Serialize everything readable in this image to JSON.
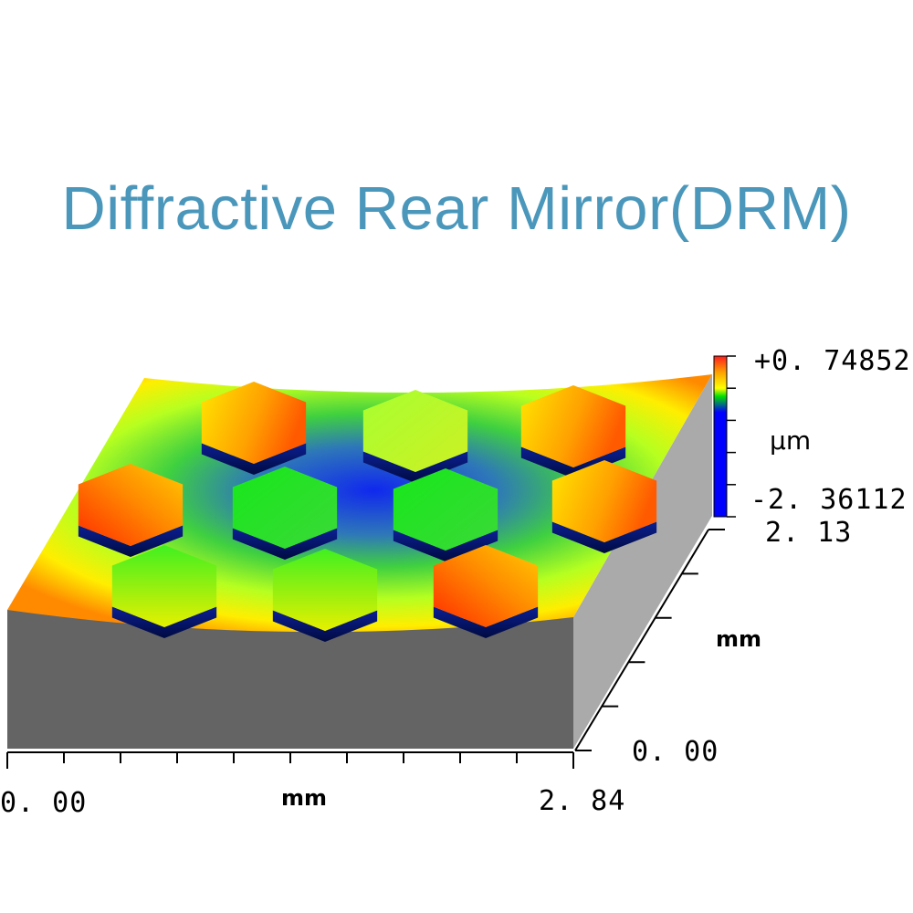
{
  "title": "Diffractive Rear Mirror(DRM)",
  "colorbar": {
    "max_label": "+0. 74852",
    "min_label": "-2. 36112",
    "unit": "μm",
    "colors": [
      "#ff1e1e",
      "#ffa000",
      "#ffff00",
      "#00e000",
      "#0000ff"
    ]
  },
  "x_axis": {
    "min_label": "0. 00",
    "max_label": "2. 84",
    "unit": "mm"
  },
  "y_axis": {
    "min_label": "0. 00",
    "max_label": "2. 13",
    "unit": "mm"
  },
  "colors": {
    "front_wall": "#646464",
    "side_wall": "#aaaaaa",
    "title": "#4a97bb",
    "surface_low": "#1437e6",
    "surface_high": "#ffe600"
  }
}
